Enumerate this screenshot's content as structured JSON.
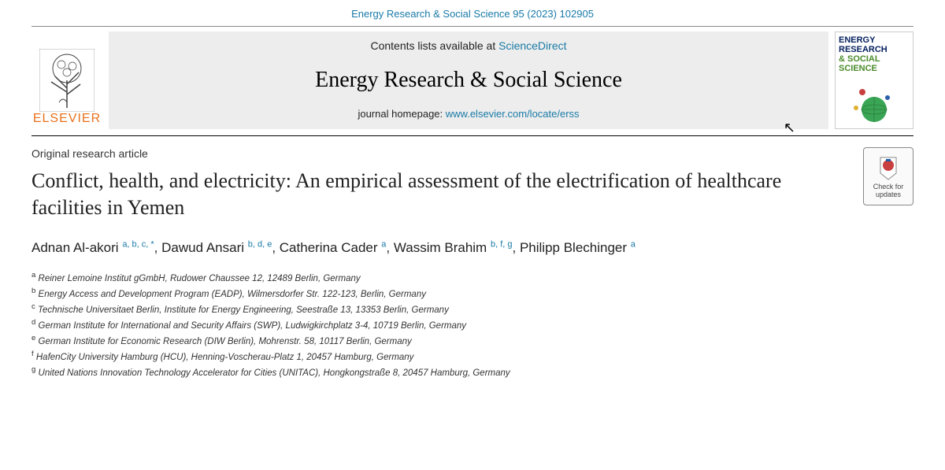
{
  "reference": "Energy Research & Social Science 95 (2023) 102905",
  "header": {
    "contents_prefix": "Contents lists available at ",
    "contents_link": "ScienceDirect",
    "journal_name": "Energy Research & Social Science",
    "homepage_prefix": "journal homepage: ",
    "homepage_link": "www.elsevier.com/locate/erss",
    "publisher": "ELSEVIER",
    "cover_text_1": "ENERGY",
    "cover_text_2": "RESEARCH",
    "cover_text_3": "& SOCIAL",
    "cover_text_4": "SCIENCE"
  },
  "article_type": "Original research article",
  "title": "Conflict, health, and electricity: An empirical assessment of the electrification of healthcare facilities in Yemen",
  "authors": [
    {
      "name": "Adnan Al-akori",
      "refs": "a, b, c, *"
    },
    {
      "name": "Dawud Ansari",
      "refs": "b, d, e"
    },
    {
      "name": "Catherina Cader",
      "refs": "a"
    },
    {
      "name": "Wassim Brahim",
      "refs": "b, f, g"
    },
    {
      "name": "Philipp Blechinger",
      "refs": "a"
    }
  ],
  "affiliations": [
    {
      "key": "a",
      "text": "Reiner Lemoine Institut gGmbH, Rudower Chaussee 12, 12489 Berlin, Germany"
    },
    {
      "key": "b",
      "text": "Energy Access and Development Program (EADP), Wilmersdorfer Str. 122-123, Berlin, Germany"
    },
    {
      "key": "c",
      "text": "Technische Universitaet Berlin, Institute for Energy Engineering, Seestraße 13, 13353 Berlin, Germany"
    },
    {
      "key": "d",
      "text": "German Institute for International and Security Affairs (SWP), Ludwigkirchplatz 3-4, 10719 Berlin, Germany"
    },
    {
      "key": "e",
      "text": "German Institute for Economic Research (DIW Berlin), Mohrenstr. 58, 10117 Berlin, Germany"
    },
    {
      "key": "f",
      "text": "HafenCity University Hamburg (HCU), Henning-Voscherau-Platz 1, 20457 Hamburg, Germany"
    },
    {
      "key": "g",
      "text": "United Nations Innovation Technology Accelerator for Cities (UNITAC), Hongkongstraße 8, 20457 Hamburg, Germany"
    }
  ],
  "check_updates": "Check for updates",
  "colors": {
    "link": "#1a7aa8",
    "publisher": "#e9711c",
    "header_bg": "#ecedec"
  }
}
